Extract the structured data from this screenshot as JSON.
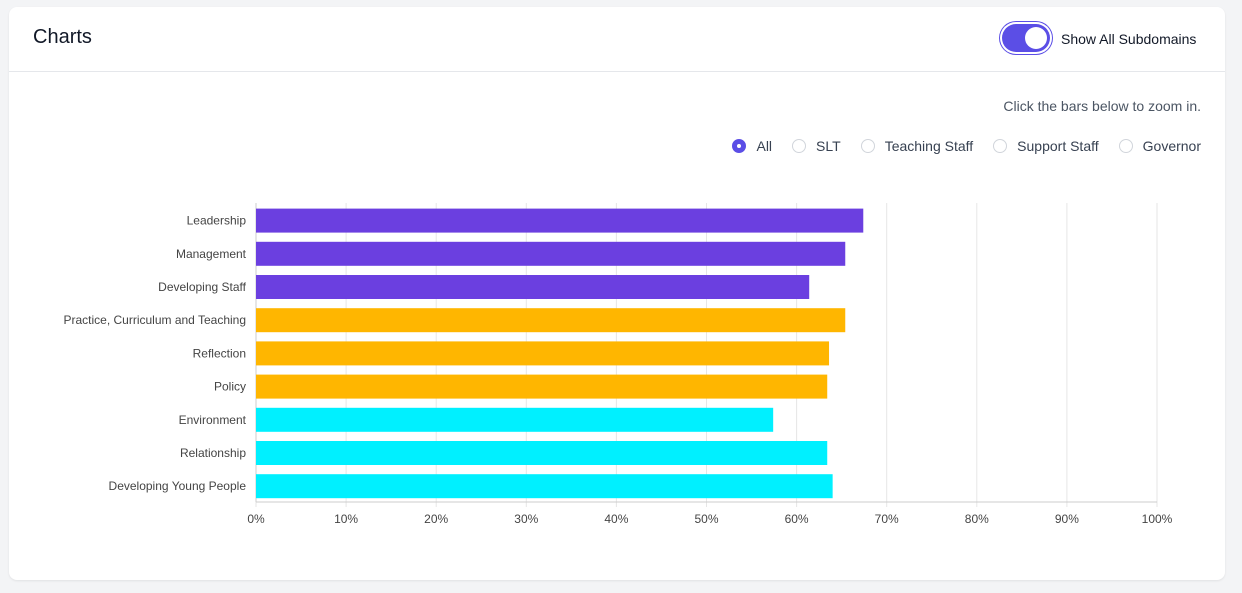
{
  "header": {
    "title": "Charts",
    "toggle_label": "Show All Subdomains",
    "toggle_on": true
  },
  "hint": "Click the bars below to zoom in.",
  "filters": [
    {
      "label": "All",
      "checked": true
    },
    {
      "label": "SLT",
      "checked": false
    },
    {
      "label": "Teaching Staff",
      "checked": false
    },
    {
      "label": "Support Staff",
      "checked": false
    },
    {
      "label": "Governor",
      "checked": false
    }
  ],
  "colors": {
    "accent": "#5b4ee6",
    "purple": "#6b3fe0",
    "orange": "#ffb600",
    "cyan": "#00f0ff"
  },
  "chart_data": {
    "type": "bar",
    "orientation": "horizontal",
    "title": "",
    "xlabel": "",
    "ylabel": "",
    "xlim": [
      0,
      100
    ],
    "ticks": [
      "0%",
      "10%",
      "20%",
      "30%",
      "40%",
      "50%",
      "60%",
      "70%",
      "80%",
      "90%",
      "100%"
    ],
    "grid": true,
    "categories": [
      "Leadership",
      "Management",
      "Developing Staff",
      "Practice, Curriculum and Teaching",
      "Reflection",
      "Policy",
      "Environment",
      "Relationship",
      "Developing Young People"
    ],
    "values": [
      67.4,
      65.4,
      61.4,
      65.4,
      63.6,
      63.4,
      57.4,
      63.4,
      64.0
    ],
    "bar_colors": [
      "#6b3fe0",
      "#6b3fe0",
      "#6b3fe0",
      "#ffb600",
      "#ffb600",
      "#ffb600",
      "#00f0ff",
      "#00f0ff",
      "#00f0ff"
    ]
  }
}
